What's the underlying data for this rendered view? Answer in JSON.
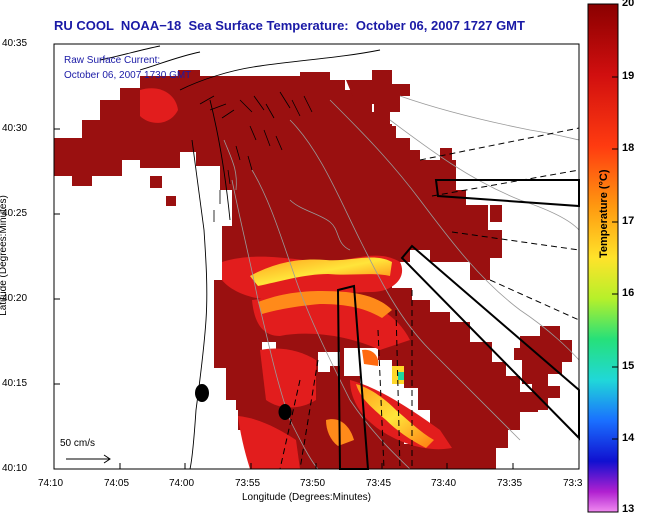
{
  "title": "RU COOL  NOAA−18  Sea Surface Temperature:  October 06, 2007 1727 GMT",
  "annotation": {
    "line1": "Raw Surface Current:",
    "line2": "October 06, 2007 1730 GMT"
  },
  "axes": {
    "xlabel": "Longitude (Degrees:Minutes)",
    "ylabel": "Latitude (Degrees:Minutes)",
    "yticks": [
      "40:35",
      "40:30",
      "40:25",
      "40:20",
      "40:15",
      "40:10"
    ],
    "xticks": [
      "74:10",
      "74:05",
      "74:00",
      "73:55",
      "73:50",
      "73:45",
      "73:40",
      "73:35",
      "73:3"
    ]
  },
  "colorbar": {
    "label": "Temperature (°C)",
    "ticks": [
      "20",
      "19",
      "18",
      "17",
      "16",
      "15",
      "14",
      "13"
    ],
    "min": 13,
    "max": 20
  },
  "scale": {
    "label": "50 cm/s"
  },
  "colors": {
    "sst_warm": "#9a1010",
    "sst_hot": "#e21d1d",
    "sst_orange": "#ff8a1a",
    "sst_yellow": "#ffe03a",
    "title_blue": "#1a1aa6"
  }
}
